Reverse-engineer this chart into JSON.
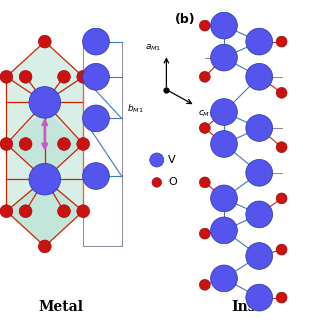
{
  "bg_color": "#ffffff",
  "v_color": "#5555ee",
  "o_color": "#cc1111",
  "metal_label": "Metal",
  "insulator_label": "Ins",
  "label_b": "(b)",
  "bond_color_red": "#cc2200",
  "bond_color_blue": "#4477bb",
  "bond_color_gray": "#888899",
  "teal_face_color": "#aaddcc",
  "pink_arrow_color": "#cc55cc",
  "v_r": 0.038,
  "o_r": 0.02,
  "figw": 3.2,
  "figh": 3.2,
  "dpi": 100
}
